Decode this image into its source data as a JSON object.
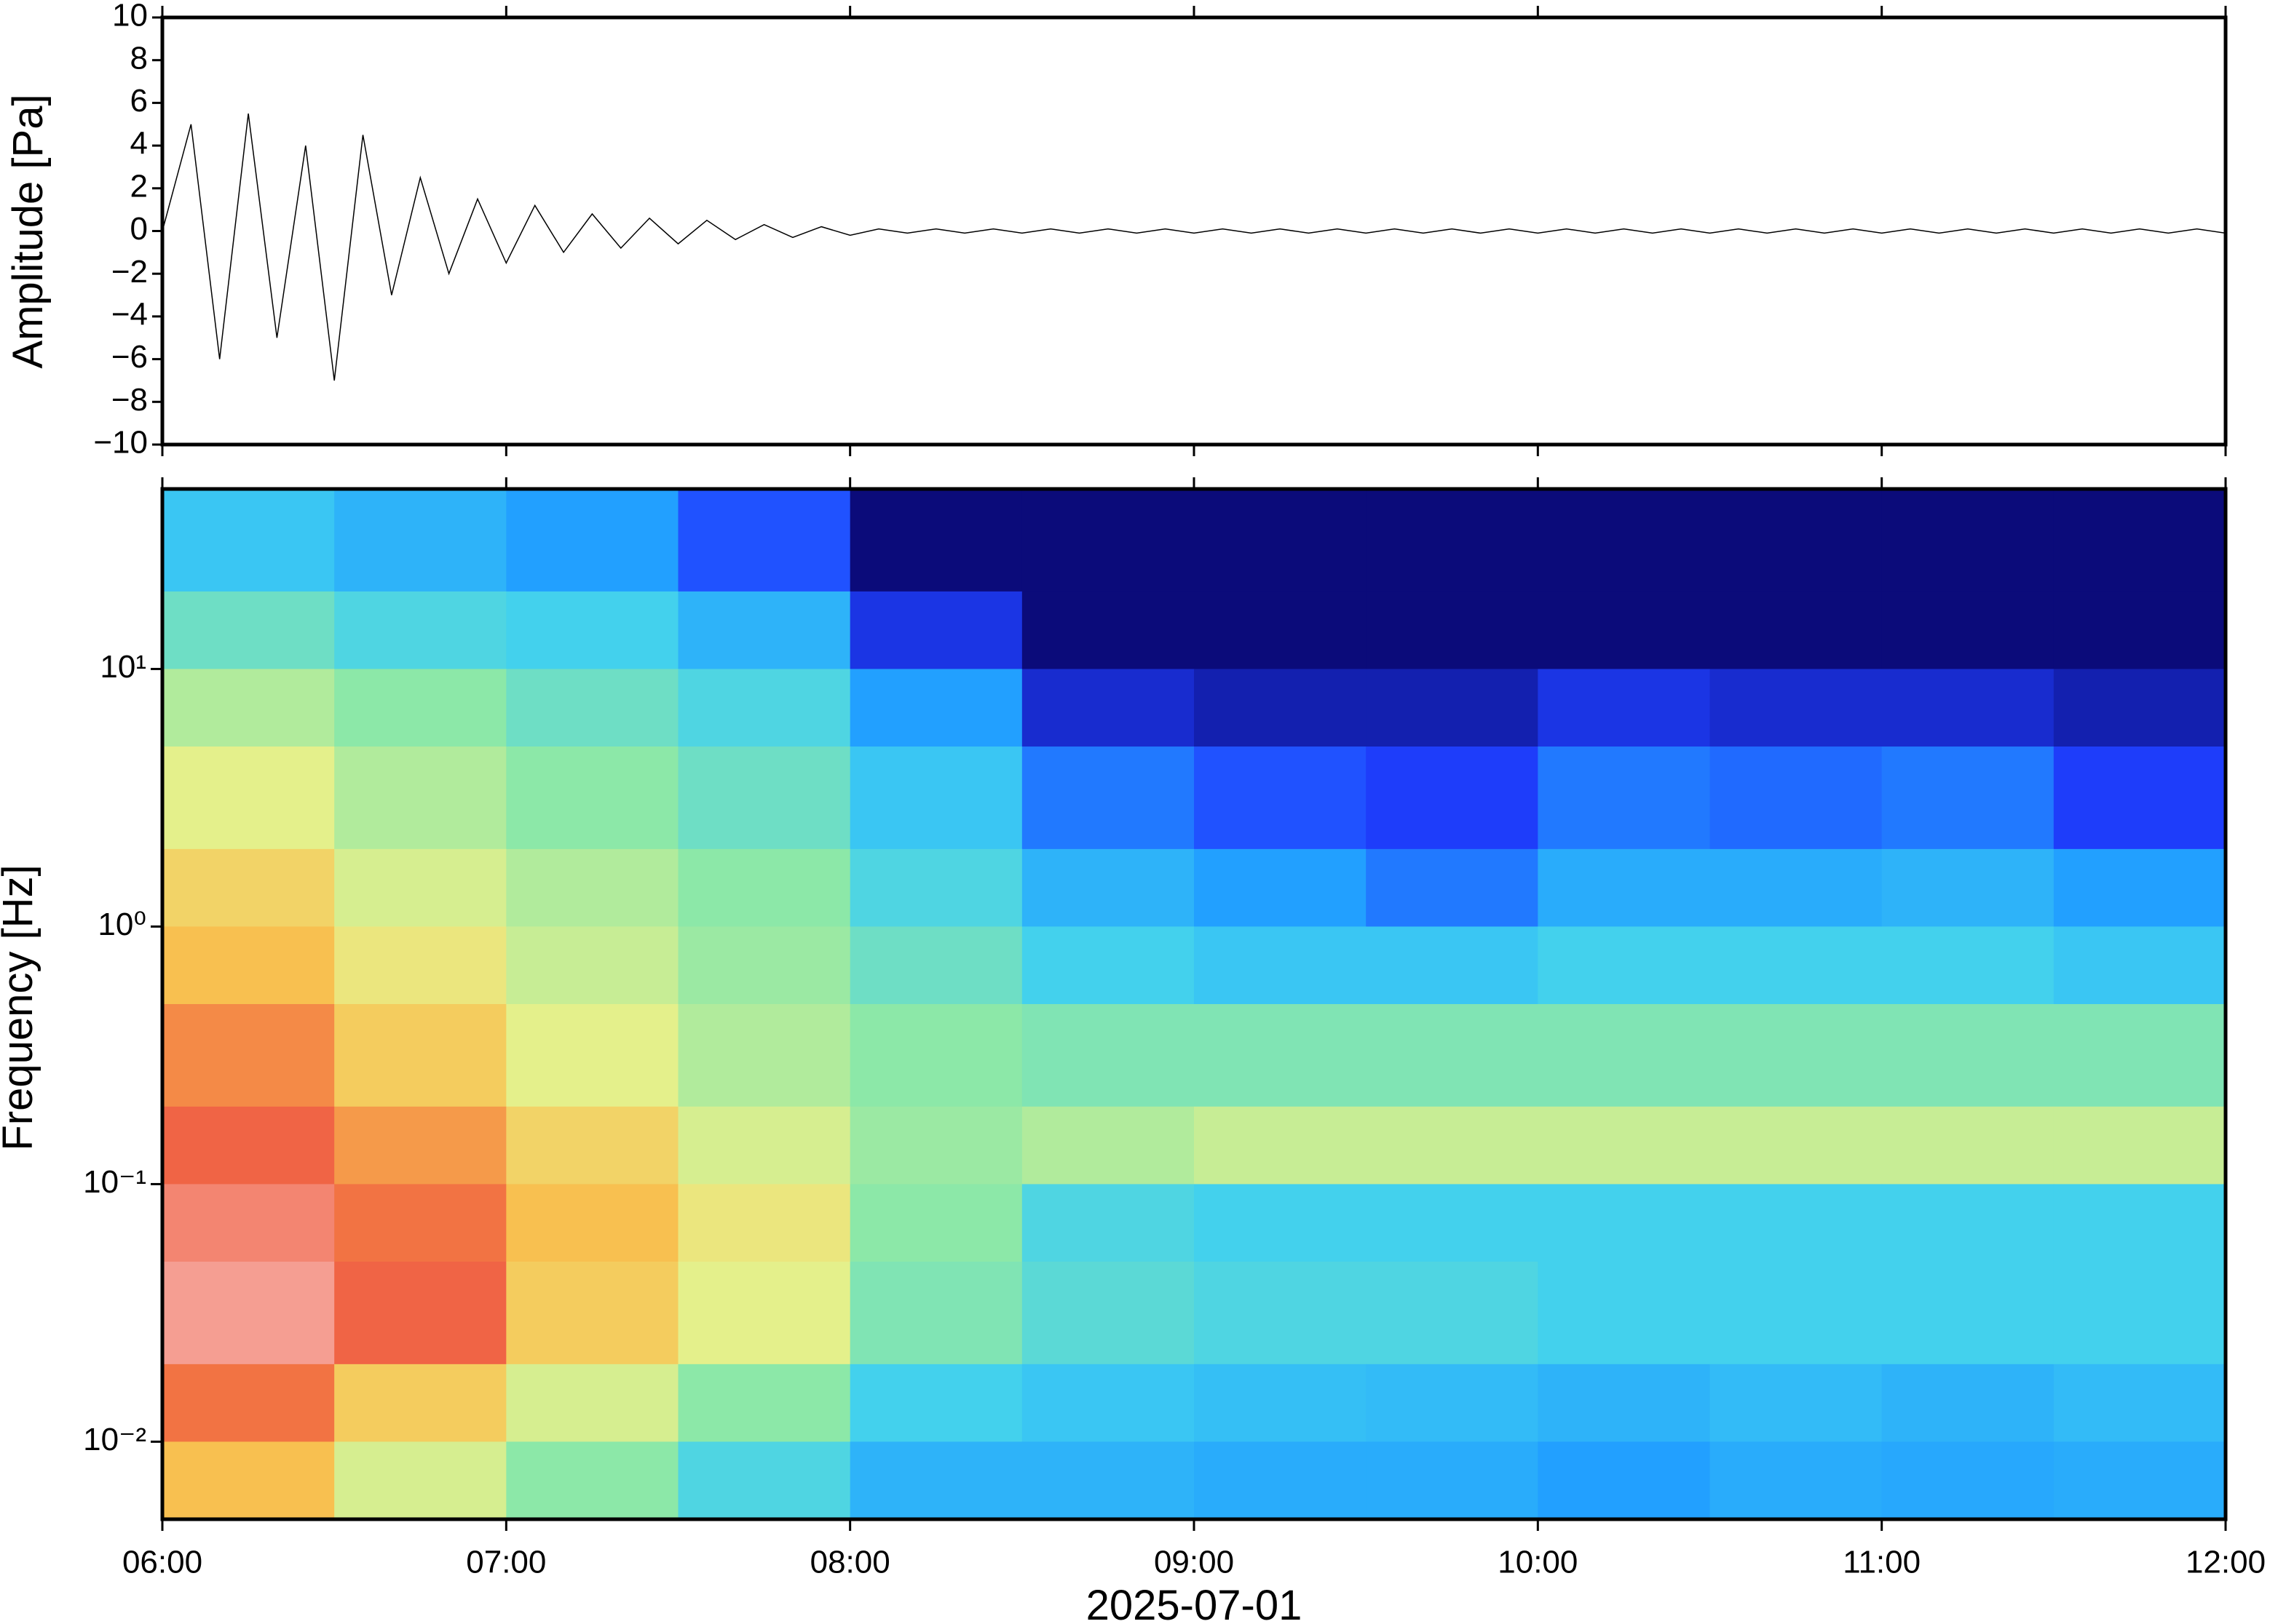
{
  "chart_data": [
    {
      "type": "line",
      "ylabel": "Amplitude [Pa]",
      "color": "#000000",
      "x": [
        "06:00",
        "06:05",
        "06:10",
        "06:15",
        "06:20",
        "06:25",
        "06:30",
        "06:35",
        "06:40",
        "06:45",
        "06:50",
        "06:55",
        "07:00",
        "07:05",
        "07:10",
        "07:15",
        "07:20",
        "07:25",
        "07:30",
        "07:35",
        "07:40",
        "07:45",
        "07:50",
        "07:55",
        "08:00",
        "08:05",
        "08:10",
        "08:15",
        "08:20",
        "08:25",
        "08:30",
        "08:35",
        "08:40",
        "08:45",
        "08:50",
        "08:55",
        "09:00",
        "09:05",
        "09:10",
        "09:15",
        "09:20",
        "09:25",
        "09:30",
        "09:35",
        "09:40",
        "09:45",
        "09:50",
        "09:55",
        "10:00",
        "10:05",
        "10:10",
        "10:15",
        "10:20",
        "10:25",
        "10:30",
        "10:35",
        "10:40",
        "10:45",
        "10:50",
        "10:55",
        "11:00",
        "11:05",
        "11:10",
        "11:15",
        "11:20",
        "11:25",
        "11:30",
        "11:35",
        "11:40",
        "11:45",
        "11:50",
        "11:55",
        "12:00"
      ],
      "values": [
        0,
        5,
        -6,
        5.5,
        -5,
        4,
        -7,
        4.5,
        -3,
        2.5,
        -2,
        1.5,
        -1.5,
        1.2,
        -1,
        0.8,
        -0.8,
        0.6,
        -0.6,
        0.5,
        -0.4,
        0.3,
        -0.3,
        0.2,
        -0.2,
        0.1,
        -0.1,
        0.1,
        -0.1,
        0.1,
        -0.1,
        0.1,
        -0.1,
        0.1,
        -0.1,
        0.1,
        -0.1,
        0.1,
        -0.1,
        0.1,
        -0.1,
        0.1,
        -0.1,
        0.1,
        -0.1,
        0.1,
        -0.1,
        0.1,
        -0.1,
        0.1,
        -0.1,
        0.1,
        -0.1,
        0.1,
        -0.1,
        0.1,
        -0.1,
        0.1,
        -0.1,
        0.1,
        -0.1,
        0.1,
        -0.1,
        0.1,
        -0.1,
        0.1,
        -0.1,
        0.1,
        -0.1,
        0.1,
        -0.1,
        0.1,
        -0.1
      ],
      "xlim": [
        "06:00",
        "12:00"
      ],
      "ylim": [
        -10,
        10
      ],
      "yticks": [
        {
          "value": -10,
          "label": "−10"
        },
        {
          "value": -8,
          "label": "−8"
        },
        {
          "value": -6,
          "label": "−6"
        },
        {
          "value": -4,
          "label": "−4"
        },
        {
          "value": -2,
          "label": "−2"
        },
        0,
        2,
        4,
        6,
        8,
        10
      ]
    },
    {
      "type": "heatmap",
      "ylabel": "Frequency [Hz]",
      "xlabel": "2025-07-01",
      "log_y": true,
      "xlim": [
        "06:00",
        "12:00"
      ],
      "ylim": [
        0.005,
        50
      ],
      "xticks": [
        "06:00",
        "07:00",
        "08:00",
        "09:00",
        "10:00",
        "11:00",
        "12:00"
      ],
      "yticks": [
        {
          "value": 0.01,
          "label": "10⁻²"
        },
        {
          "value": 0.1,
          "label": "10⁻¹"
        },
        {
          "value": 1,
          "label": "10⁰"
        },
        {
          "value": 10,
          "label": "10¹"
        }
      ],
      "x_edges": [
        "06:00",
        "06:30",
        "07:00",
        "07:30",
        "08:00",
        "08:30",
        "09:00",
        "09:30",
        "10:00",
        "10:30",
        "11:00",
        "11:30",
        "12:00"
      ],
      "y_edges": [
        50,
        20,
        10,
        5,
        2,
        1,
        0.5,
        0.2,
        0.1,
        0.05,
        0.02,
        0.01,
        0.005
      ],
      "zlim": [
        0,
        100
      ],
      "colormap": [
        "#0b0b7a",
        "#1f3fff",
        "#22a0ff",
        "#40d0f0",
        "#8ce8a8",
        "#e8f08a",
        "#f8c050",
        "#f06040",
        "#f8c8c8"
      ],
      "z": [
        [
          35,
          30,
          25,
          15,
          0,
          0,
          0,
          0,
          0,
          0,
          0,
          0
        ],
        [
          45,
          40,
          38,
          30,
          10,
          0,
          0,
          0,
          0,
          0,
          0,
          0
        ],
        [
          55,
          50,
          45,
          40,
          25,
          8,
          5,
          5,
          10,
          8,
          8,
          5
        ],
        [
          62,
          55,
          50,
          45,
          35,
          20,
          15,
          12,
          20,
          18,
          20,
          12
        ],
        [
          70,
          60,
          55,
          50,
          40,
          30,
          25,
          20,
          28,
          28,
          30,
          25
        ],
        [
          75,
          65,
          58,
          52,
          45,
          38,
          35,
          35,
          38,
          38,
          38,
          35
        ],
        [
          82,
          72,
          62,
          55,
          50,
          48,
          48,
          48,
          48,
          48,
          48,
          48
        ],
        [
          88,
          80,
          70,
          60,
          52,
          55,
          58,
          58,
          58,
          58,
          58,
          58
        ],
        [
          92,
          85,
          75,
          65,
          50,
          40,
          38,
          38,
          38,
          38,
          38,
          38
        ],
        [
          95,
          88,
          72,
          62,
          48,
          42,
          40,
          40,
          38,
          38,
          38,
          38
        ],
        [
          85,
          72,
          60,
          50,
          38,
          35,
          33,
          32,
          30,
          32,
          30,
          32
        ],
        [
          75,
          60,
          50,
          40,
          30,
          30,
          28,
          28,
          25,
          28,
          27,
          28
        ]
      ]
    }
  ]
}
